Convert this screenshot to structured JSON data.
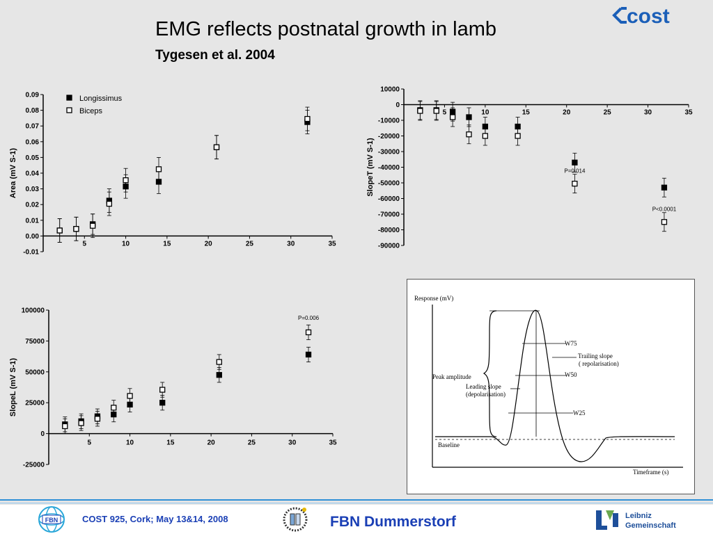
{
  "header": {
    "title": "EMG reflects postnatal growth in lamb",
    "subtitle": "Tygesen et al. 2004",
    "logo_text": "cost"
  },
  "colors": {
    "footer_text": "#1a3fb5",
    "rule": "#2e8fd6"
  },
  "chart_data": [
    {
      "type": "scatter",
      "ylabel": "Area (mV S-1)",
      "xlim": [
        0,
        35
      ],
      "ylim": [
        -0.01,
        0.09
      ],
      "x_ticks": [
        "5",
        "10",
        "15",
        "20",
        "25",
        "30",
        "35"
      ],
      "y_ticks": [
        "0.09",
        "0.08",
        "0.07",
        "0.06",
        "0.05",
        "0.04",
        "0.03",
        "0.02",
        "0.01",
        "0.00",
        "-0.01"
      ],
      "legend": [
        "Longissimus",
        "Biceps"
      ],
      "series": [
        {
          "name": "Longissimus",
          "marker": "filled-square",
          "x": [
            2,
            4,
            6,
            8,
            10,
            14,
            21,
            32
          ],
          "y": [
            0.0035,
            0.0045,
            0.0075,
            0.0225,
            0.0315,
            0.0345,
            0.0565,
            0.0725
          ],
          "err": [
            0.0075,
            0.0075,
            0.0065,
            0.0075,
            0.0075,
            0.0075,
            0.0075,
            0.0075
          ]
        },
        {
          "name": "Biceps",
          "marker": "open-square",
          "x": [
            2,
            4,
            6,
            8,
            10,
            14,
            21,
            32
          ],
          "y": [
            0.0035,
            0.0045,
            0.0065,
            0.0205,
            0.0355,
            0.0425,
            0.0565,
            0.0745
          ],
          "err": [
            0.0075,
            0.0075,
            0.0075,
            0.0075,
            0.0075,
            0.0075,
            0.0075,
            0.0075
          ]
        }
      ]
    },
    {
      "type": "scatter",
      "ylabel": "SlopeT (mV S-1)",
      "xlim": [
        0,
        35
      ],
      "ylim": [
        -90000,
        10000
      ],
      "x_ticks": [
        "5",
        "10",
        "15",
        "20",
        "25",
        "30",
        "35"
      ],
      "y_ticks": [
        "10000",
        "0",
        "-10000",
        "-20000",
        "-30000",
        "-40000",
        "-50000",
        "-60000",
        "-70000",
        "-80000",
        "-90000"
      ],
      "annotations": [
        "P=0.014",
        "P<0.0001"
      ],
      "series": [
        {
          "name": "Longissimus",
          "marker": "filled-square",
          "x": [
            2,
            4,
            6,
            8,
            10,
            14,
            21,
            32
          ],
          "y": [
            -3500,
            -3500,
            -4500,
            -8000,
            -14000,
            -14000,
            -37000,
            -53000
          ],
          "err": [
            6000,
            6000,
            6000,
            6000,
            6000,
            6000,
            6000,
            6000
          ]
        },
        {
          "name": "Biceps",
          "marker": "open-square",
          "x": [
            2,
            4,
            6,
            8,
            10,
            14,
            21,
            32
          ],
          "y": [
            -4000,
            -4000,
            -8000,
            -19000,
            -20000,
            -20000,
            -50500,
            -75000
          ],
          "err": [
            6000,
            6000,
            6000,
            6000,
            6000,
            6000,
            6000,
            6000
          ]
        }
      ]
    },
    {
      "type": "scatter",
      "ylabel": "SlopeL (mV S-1)",
      "xlim": [
        0,
        35
      ],
      "ylim": [
        -25000,
        100000
      ],
      "x_ticks": [
        "5",
        "10",
        "15",
        "20",
        "25",
        "30",
        "35"
      ],
      "y_ticks": [
        "100000",
        "75000",
        "50000",
        "25000",
        "0",
        "-25000"
      ],
      "annotations": [
        "P=0.006"
      ],
      "series": [
        {
          "name": "Longissimus",
          "marker": "filled-square",
          "x": [
            2,
            4,
            6,
            8,
            10,
            14,
            21,
            32
          ],
          "y": [
            7500,
            10000,
            14000,
            15500,
            23500,
            25000,
            47500,
            64000
          ],
          "err": [
            6000,
            6000,
            6000,
            6000,
            6000,
            6000,
            6000,
            6000
          ]
        },
        {
          "name": "Biceps",
          "marker": "open-square",
          "x": [
            2,
            4,
            6,
            8,
            10,
            14,
            21,
            32
          ],
          "y": [
            6000,
            8500,
            12000,
            21000,
            30500,
            35500,
            58000,
            82000
          ],
          "err": [
            6000,
            6000,
            6000,
            6000,
            6000,
            6000,
            6000,
            6000
          ]
        }
      ]
    }
  ],
  "diagram": {
    "ylabel": "Response (mV)",
    "xlabel": "Timeframe (s)",
    "labels": [
      "W75",
      "Trailing slope",
      "( repolarisation)",
      "Peak amplitude",
      "Leading slope",
      "(depolarisation)",
      "W50",
      "W25",
      "Baseline"
    ]
  },
  "footer": {
    "left_logo": "FBN",
    "event": "COST 925, Cork; May 13&14, 2008",
    "institute": "FBN Dummerstorf",
    "right_logo_line1": "Leibniz",
    "right_logo_line2": "Gemeinschaft"
  }
}
